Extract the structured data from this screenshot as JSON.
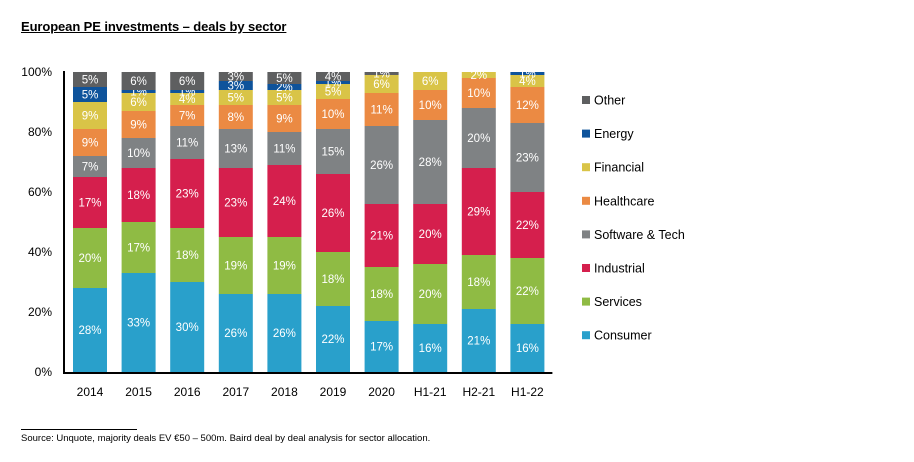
{
  "title": "European PE investments – deals by sector",
  "source": "Source:  Unquote, majority deals EV €50 – 500m.  Baird deal by deal analysis for sector allocation.",
  "chart_data": {
    "type": "bar",
    "stacked": true,
    "title": "European PE investments – deals by sector",
    "xlabel": "",
    "ylabel": "",
    "ylim": [
      0,
      100
    ],
    "yticks": [
      "0%",
      "20%",
      "40%",
      "60%",
      "80%",
      "100%"
    ],
    "ytick_values": [
      0,
      20,
      40,
      60,
      80,
      100
    ],
    "grid": false,
    "legend_position": "right",
    "categories": [
      "2014",
      "2015",
      "2016",
      "2017",
      "2018",
      "2019",
      "2020",
      "H1-21",
      "H2-21",
      "H1-22"
    ],
    "series": [
      {
        "name": "Consumer",
        "color": "#29A0CB",
        "values": [
          28,
          33,
          30,
          26,
          26,
          22,
          17,
          16,
          21,
          16
        ]
      },
      {
        "name": "Services",
        "color": "#8FBB44",
        "values": [
          20,
          17,
          18,
          19,
          19,
          18,
          18,
          20,
          18,
          22
        ]
      },
      {
        "name": "Industrial",
        "color": "#D51F4D",
        "values": [
          17,
          18,
          23,
          23,
          24,
          26,
          21,
          20,
          29,
          22
        ]
      },
      {
        "name": "Software & Tech",
        "color": "#7F8284",
        "values": [
          7,
          10,
          11,
          13,
          11,
          15,
          26,
          28,
          20,
          23
        ]
      },
      {
        "name": "Healthcare",
        "color": "#EB8A43",
        "values": [
          9,
          9,
          7,
          8,
          9,
          10,
          11,
          10,
          10,
          12
        ]
      },
      {
        "name": "Financial",
        "color": "#D9C447",
        "values": [
          9,
          6,
          4,
          5,
          5,
          5,
          6,
          6,
          2,
          4
        ]
      },
      {
        "name": "Energy",
        "color": "#0E539B",
        "values": [
          5,
          1,
          1,
          3,
          2,
          1,
          0,
          0,
          0,
          1
        ]
      },
      {
        "name": "Other",
        "color": "#5E5F60",
        "values": [
          5,
          6,
          6,
          3,
          5,
          4,
          1,
          0,
          0,
          0
        ]
      }
    ],
    "legend_order": [
      "Other",
      "Energy",
      "Financial",
      "Healthcare",
      "Software & Tech",
      "Industrial",
      "Services",
      "Consumer"
    ],
    "data_label_format": "{v}%"
  }
}
